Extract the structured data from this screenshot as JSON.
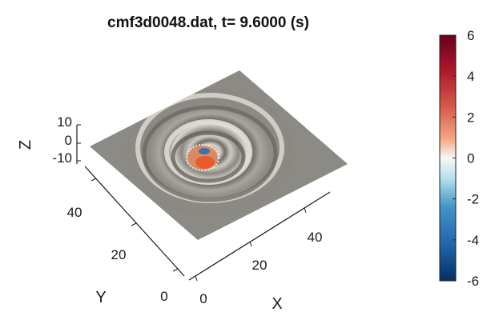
{
  "chart_data": {
    "type": "surface3d",
    "title": "cmf3d0048.dat, t= 9.6000 (s)",
    "xlabel": "X",
    "ylabel": "Y",
    "zlabel": "Z",
    "x_ticks": [
      "0",
      "20",
      "40"
    ],
    "y_ticks": [
      "0",
      "20",
      "40"
    ],
    "z_ticks": [
      "10",
      "0",
      "-10"
    ],
    "xlim": [
      0,
      50
    ],
    "ylim": [
      0,
      50
    ],
    "zlim": [
      -10,
      10
    ],
    "colorbar": {
      "colormap": "red-white-blue diverging",
      "range": [
        -6,
        6
      ],
      "ticks": [
        "6",
        "4",
        "2",
        "0",
        "-2",
        "-4",
        "-6"
      ]
    },
    "surface": {
      "description_values": {
        "center": [
          25,
          25
        ],
        "ring_radii": [
          5,
          11
        ]
      }
    }
  },
  "colors": {
    "surface_gray": "#8c8a84",
    "ring_light": "#d9d4cb",
    "ring_dark": "#6e6c67",
    "cbar_top": "#67001f",
    "cbar_mid": "#f7f7f7",
    "cbar_bottom": "#053061"
  }
}
